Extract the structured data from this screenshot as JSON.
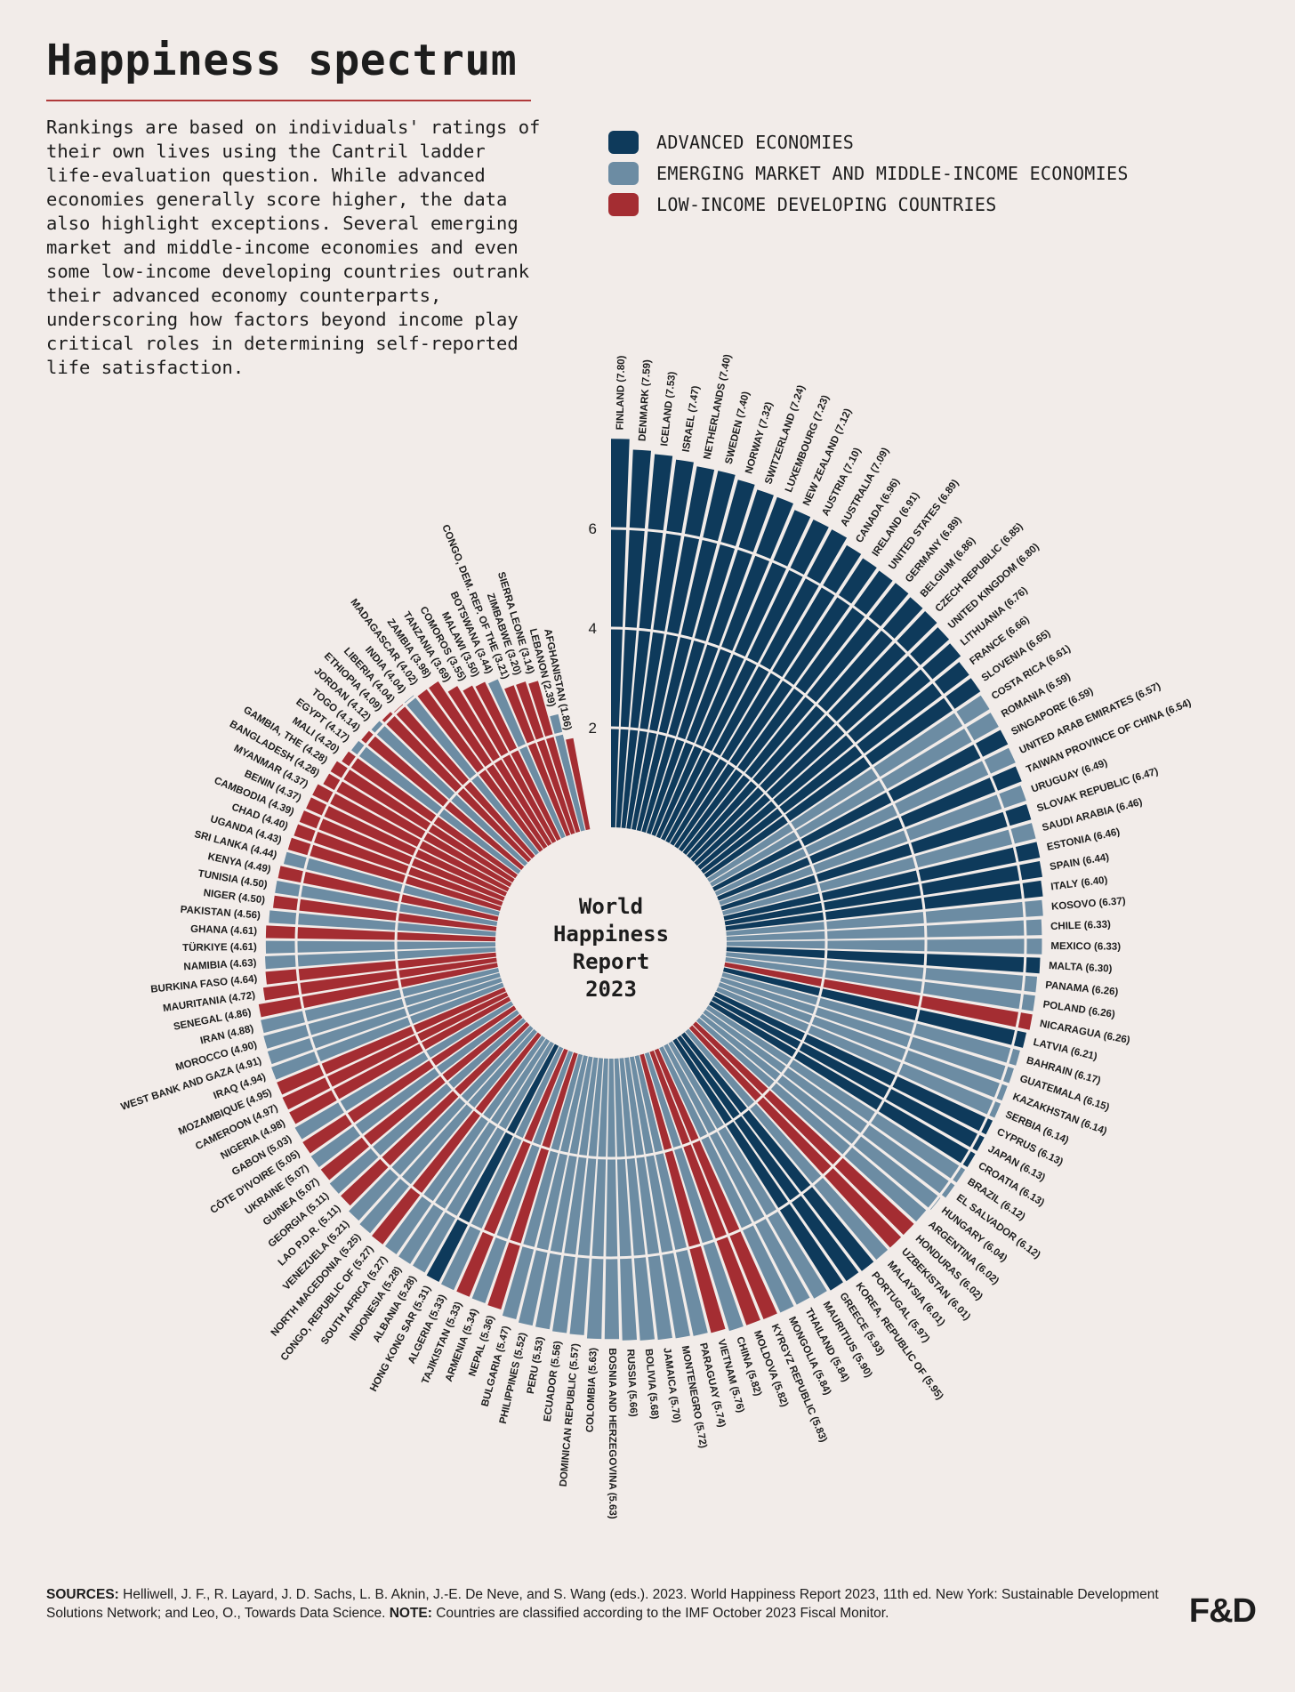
{
  "title": "Happiness spectrum",
  "intro": "Rankings are based on individuals' ratings of their own lives using the Cantril ladder life-evaluation question. While advanced economies generally score higher, the data also highlight exceptions. Several emerging market and middle-income economies and even some low-income developing countries outrank their advanced economy counterparts, underscoring how factors beyond income play critical roles in determining self-reported life satisfaction.",
  "legend": [
    {
      "key": "A",
      "label": "ADVANCED ECONOMIES",
      "color": "#0e3a5b"
    },
    {
      "key": "E",
      "label": "EMERGING MARKET AND MIDDLE-INCOME ECONOMIES",
      "color": "#6c8ca3"
    },
    {
      "key": "L",
      "label": "LOW-INCOME DEVELOPING COUNTRIES",
      "color": "#a42d32"
    }
  ],
  "footer": {
    "sources_label": "SOURCES:",
    "sources_text": "Helliwell, J. F., R. Layard, J. D. Sachs, L. B. Aknin, J.-E. De Neve, and S. Wang (eds.). 2023. World Happiness Report 2023, 11th ed. New York: Sustainable Development Solutions Network; and Leo, O., Towards Data Science.",
    "note_label": "NOTE:",
    "note_text": "Countries are classified according to the IMF October 2023 Fiscal Monitor."
  },
  "brand": "F&D",
  "chart_data": {
    "type": "bar",
    "layout": "radial",
    "center_label": [
      "World",
      "Happiness",
      "Report",
      "2023"
    ],
    "axis_ticks": [
      2,
      4,
      6
    ],
    "ylim": [
      0,
      8
    ],
    "series": [
      {
        "name": "FINLAND",
        "value": 7.8,
        "group": "A"
      },
      {
        "name": "DENMARK",
        "value": 7.59,
        "group": "A"
      },
      {
        "name": "ICELAND",
        "value": 7.53,
        "group": "A"
      },
      {
        "name": "ISRAEL",
        "value": 7.47,
        "group": "A"
      },
      {
        "name": "NETHERLANDS",
        "value": 7.4,
        "group": "A"
      },
      {
        "name": "SWEDEN",
        "value": 7.4,
        "group": "A"
      },
      {
        "name": "NORWAY",
        "value": 7.32,
        "group": "A"
      },
      {
        "name": "SWITZERLAND",
        "value": 7.24,
        "group": "A"
      },
      {
        "name": "LUXEMBOURG",
        "value": 7.23,
        "group": "A"
      },
      {
        "name": "NEW ZEALAND",
        "value": 7.12,
        "group": "A"
      },
      {
        "name": "AUSTRIA",
        "value": 7.1,
        "group": "A"
      },
      {
        "name": "AUSTRALIA",
        "value": 7.09,
        "group": "A"
      },
      {
        "name": "CANADA",
        "value": 6.96,
        "group": "A"
      },
      {
        "name": "IRELAND",
        "value": 6.91,
        "group": "A"
      },
      {
        "name": "UNITED STATES",
        "value": 6.89,
        "group": "A"
      },
      {
        "name": "GERMANY",
        "value": 6.89,
        "group": "A"
      },
      {
        "name": "BELGIUM",
        "value": 6.86,
        "group": "A"
      },
      {
        "name": "CZECH REPUBLIC",
        "value": 6.85,
        "group": "A"
      },
      {
        "name": "UNITED KINGDOM",
        "value": 6.8,
        "group": "A"
      },
      {
        "name": "LITHUANIA",
        "value": 6.76,
        "group": "A"
      },
      {
        "name": "FRANCE",
        "value": 6.66,
        "group": "A"
      },
      {
        "name": "SLOVENIA",
        "value": 6.65,
        "group": "A"
      },
      {
        "name": "COSTA RICA",
        "value": 6.61,
        "group": "E"
      },
      {
        "name": "ROMANIA",
        "value": 6.59,
        "group": "E"
      },
      {
        "name": "SINGAPORE",
        "value": 6.59,
        "group": "A"
      },
      {
        "name": "UNITED ARAB EMIRATES",
        "value": 6.57,
        "group": "E"
      },
      {
        "name": "TAIWAN PROVINCE OF CHINA",
        "value": 6.54,
        "group": "A"
      },
      {
        "name": "URUGUAY",
        "value": 6.49,
        "group": "E"
      },
      {
        "name": "SLOVAK REPUBLIC",
        "value": 6.47,
        "group": "A"
      },
      {
        "name": "SAUDI ARABIA",
        "value": 6.46,
        "group": "E"
      },
      {
        "name": "ESTONIA",
        "value": 6.46,
        "group": "A"
      },
      {
        "name": "SPAIN",
        "value": 6.44,
        "group": "A"
      },
      {
        "name": "ITALY",
        "value": 6.4,
        "group": "A"
      },
      {
        "name": "KOSOVO",
        "value": 6.37,
        "group": "E"
      },
      {
        "name": "CHILE",
        "value": 6.33,
        "group": "E"
      },
      {
        "name": "MEXICO",
        "value": 6.33,
        "group": "E"
      },
      {
        "name": "MALTA",
        "value": 6.3,
        "group": "A"
      },
      {
        "name": "PANAMA",
        "value": 6.26,
        "group": "E"
      },
      {
        "name": "POLAND",
        "value": 6.26,
        "group": "E"
      },
      {
        "name": "NICARAGUA",
        "value": 6.26,
        "group": "L"
      },
      {
        "name": "LATVIA",
        "value": 6.21,
        "group": "A"
      },
      {
        "name": "BAHRAIN",
        "value": 6.17,
        "group": "E"
      },
      {
        "name": "GUATEMALA",
        "value": 6.15,
        "group": "E"
      },
      {
        "name": "KAZAKHSTAN",
        "value": 6.14,
        "group": "E"
      },
      {
        "name": "SERBIA",
        "value": 6.14,
        "group": "E"
      },
      {
        "name": "CYPRUS",
        "value": 6.13,
        "group": "A"
      },
      {
        "name": "JAPAN",
        "value": 6.13,
        "group": "A"
      },
      {
        "name": "CROATIA",
        "value": 6.13,
        "group": "A"
      },
      {
        "name": "BRAZIL",
        "value": 6.12,
        "group": "E"
      },
      {
        "name": "EL SALVADOR",
        "value": 6.12,
        "group": "E"
      },
      {
        "name": "HUNGARY",
        "value": 6.04,
        "group": "E"
      },
      {
        "name": "ARGENTINA",
        "value": 6.02,
        "group": "E"
      },
      {
        "name": "HONDURAS",
        "value": 6.02,
        "group": "L"
      },
      {
        "name": "UZBEKISTAN",
        "value": 6.01,
        "group": "L"
      },
      {
        "name": "MALAYSIA",
        "value": 6.01,
        "group": "E"
      },
      {
        "name": "PORTUGAL",
        "value": 5.97,
        "group": "A"
      },
      {
        "name": "KOREA, REPUBLIC OF",
        "value": 5.95,
        "group": "A"
      },
      {
        "name": "GREECE",
        "value": 5.93,
        "group": "A"
      },
      {
        "name": "MAURITIUS",
        "value": 5.9,
        "group": "E"
      },
      {
        "name": "THAILAND",
        "value": 5.84,
        "group": "E"
      },
      {
        "name": "MONGOLIA",
        "value": 5.84,
        "group": "E"
      },
      {
        "name": "KYRGYZ REPUBLIC",
        "value": 5.83,
        "group": "L"
      },
      {
        "name": "MOLDOVA",
        "value": 5.82,
        "group": "L"
      },
      {
        "name": "CHINA",
        "value": 5.82,
        "group": "E"
      },
      {
        "name": "VIETNAM",
        "value": 5.76,
        "group": "L"
      },
      {
        "name": "PARAGUAY",
        "value": 5.74,
        "group": "E"
      },
      {
        "name": "MONTENEGRO",
        "value": 5.72,
        "group": "E"
      },
      {
        "name": "JAMAICA",
        "value": 5.7,
        "group": "E"
      },
      {
        "name": "BOLIVIA",
        "value": 5.68,
        "group": "E"
      },
      {
        "name": "RUSSIA",
        "value": 5.66,
        "group": "E"
      },
      {
        "name": "BOSNIA AND HERZEGOVINA",
        "value": 5.63,
        "group": "E"
      },
      {
        "name": "COLOMBIA",
        "value": 5.63,
        "group": "E"
      },
      {
        "name": "DOMINICAN REPUBLIC",
        "value": 5.57,
        "group": "E"
      },
      {
        "name": "ECUADOR",
        "value": 5.56,
        "group": "E"
      },
      {
        "name": "PERU",
        "value": 5.53,
        "group": "E"
      },
      {
        "name": "PHILIPPINES",
        "value": 5.52,
        "group": "E"
      },
      {
        "name": "BULGARIA",
        "value": 5.47,
        "group": "E"
      },
      {
        "name": "NEPAL",
        "value": 5.36,
        "group": "L"
      },
      {
        "name": "ARMENIA",
        "value": 5.34,
        "group": "E"
      },
      {
        "name": "TAJIKISTAN",
        "value": 5.33,
        "group": "L"
      },
      {
        "name": "ALGERIA",
        "value": 5.33,
        "group": "E"
      },
      {
        "name": "HONG KONG SAR",
        "value": 5.31,
        "group": "A"
      },
      {
        "name": "ALBANIA",
        "value": 5.28,
        "group": "E"
      },
      {
        "name": "INDONESIA",
        "value": 5.28,
        "group": "E"
      },
      {
        "name": "SOUTH AFRICA",
        "value": 5.27,
        "group": "E"
      },
      {
        "name": "CONGO, REPUBLIC OF",
        "value": 5.27,
        "group": "L"
      },
      {
        "name": "NORTH MACEDONIA",
        "value": 5.25,
        "group": "E"
      },
      {
        "name": "VENEZUELA",
        "value": 5.21,
        "group": "E"
      },
      {
        "name": "LAO P.D.R.",
        "value": 5.11,
        "group": "L"
      },
      {
        "name": "GEORGIA",
        "value": 5.11,
        "group": "E"
      },
      {
        "name": "GUINEA",
        "value": 5.07,
        "group": "L"
      },
      {
        "name": "UKRAINE",
        "value": 5.07,
        "group": "E"
      },
      {
        "name": "CÔTE D'IVOIRE",
        "value": 5.05,
        "group": "L"
      },
      {
        "name": "GABON",
        "value": 5.03,
        "group": "E"
      },
      {
        "name": "NIGERIA",
        "value": 4.98,
        "group": "L"
      },
      {
        "name": "CAMEROON",
        "value": 4.97,
        "group": "L"
      },
      {
        "name": "MOZAMBIQUE",
        "value": 4.95,
        "group": "L"
      },
      {
        "name": "IRAQ",
        "value": 4.94,
        "group": "E"
      },
      {
        "name": "WEST BANK AND GAZA",
        "value": 4.91,
        "group": "E"
      },
      {
        "name": "MOROCCO",
        "value": 4.9,
        "group": "E"
      },
      {
        "name": "IRAN",
        "value": 4.88,
        "group": "E"
      },
      {
        "name": "SENEGAL",
        "value": 4.86,
        "group": "L"
      },
      {
        "name": "MAURITANIA",
        "value": 4.72,
        "group": "L"
      },
      {
        "name": "BURKINA FASO",
        "value": 4.64,
        "group": "L"
      },
      {
        "name": "NAMIBIA",
        "value": 4.63,
        "group": "E"
      },
      {
        "name": "TÜRKIYE",
        "value": 4.61,
        "group": "E"
      },
      {
        "name": "GHANA",
        "value": 4.61,
        "group": "L"
      },
      {
        "name": "PAKISTAN",
        "value": 4.56,
        "group": "E"
      },
      {
        "name": "NIGER",
        "value": 4.5,
        "group": "L"
      },
      {
        "name": "TUNISIA",
        "value": 4.5,
        "group": "E"
      },
      {
        "name": "KENYA",
        "value": 4.49,
        "group": "L"
      },
      {
        "name": "SRI LANKA",
        "value": 4.44,
        "group": "E"
      },
      {
        "name": "UGANDA",
        "value": 4.43,
        "group": "L"
      },
      {
        "name": "CHAD",
        "value": 4.4,
        "group": "L"
      },
      {
        "name": "CAMBODIA",
        "value": 4.39,
        "group": "L"
      },
      {
        "name": "BENIN",
        "value": 4.37,
        "group": "L"
      },
      {
        "name": "MYANMAR",
        "value": 4.37,
        "group": "L"
      },
      {
        "name": "BANGLADESH",
        "value": 4.28,
        "group": "L"
      },
      {
        "name": "GAMBIA, THE",
        "value": 4.28,
        "group": "L"
      },
      {
        "name": "MALI",
        "value": 4.2,
        "group": "L"
      },
      {
        "name": "EGYPT",
        "value": 4.17,
        "group": "E"
      },
      {
        "name": "TOGO",
        "value": 4.14,
        "group": "L"
      },
      {
        "name": "JORDAN",
        "value": 4.12,
        "group": "E"
      },
      {
        "name": "ETHIOPIA",
        "value": 4.09,
        "group": "L"
      },
      {
        "name": "LIBERIA",
        "value": 4.04,
        "group": "L"
      },
      {
        "name": "INDIA",
        "value": 4.04,
        "group": "E"
      },
      {
        "name": "MADAGASCAR",
        "value": 4.02,
        "group": "L"
      },
      {
        "name": "ZAMBIA",
        "value": 3.98,
        "group": "L"
      },
      {
        "name": "TANZANIA",
        "value": 3.69,
        "group": "L"
      },
      {
        "name": "COMOROS",
        "value": 3.55,
        "group": "L"
      },
      {
        "name": "MALAWI",
        "value": 3.5,
        "group": "L"
      },
      {
        "name": "BOTSWANA",
        "value": 3.44,
        "group": "E"
      },
      {
        "name": "CONGO, DEM. REP. OF THE",
        "value": 3.21,
        "group": "L"
      },
      {
        "name": "ZIMBABWE",
        "value": 3.2,
        "group": "L"
      },
      {
        "name": "SIERRA LEONE",
        "value": 3.14,
        "group": "L"
      },
      {
        "name": "LEBANON",
        "value": 2.39,
        "group": "E"
      },
      {
        "name": "AFGHANISTAN",
        "value": 1.86,
        "group": "L"
      }
    ]
  }
}
